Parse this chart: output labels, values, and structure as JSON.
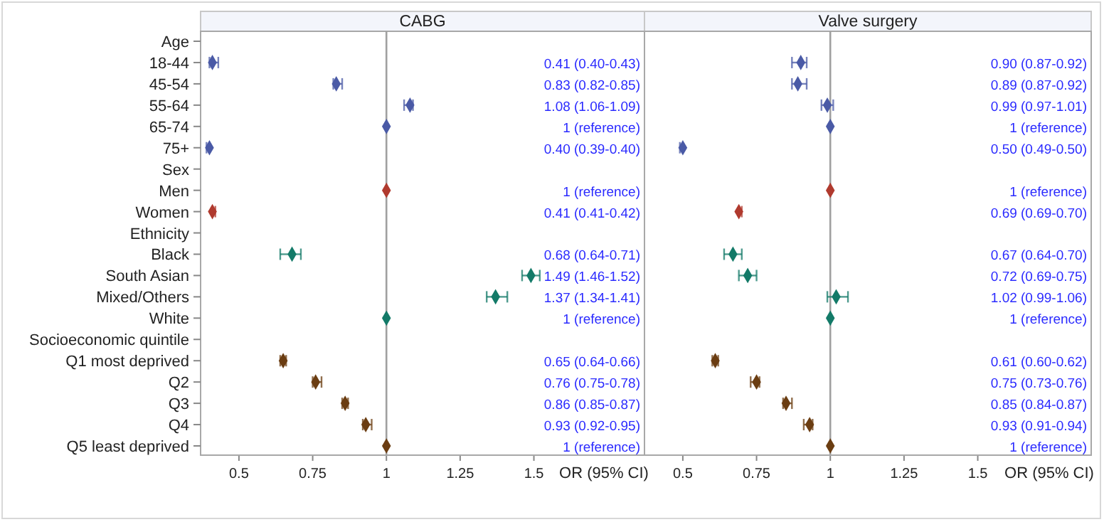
{
  "chart_data": [
    {
      "type": "scatter",
      "orientation": "horizontal",
      "title": "CABG",
      "xlabel": "OR (95% CI)",
      "marker": "diamond",
      "categories": [
        "Age",
        "18-44",
        "45-54",
        "55-64",
        "65-74",
        "75+",
        "Sex",
        "Men",
        "Women",
        "Ethnicity",
        "Black",
        "South Asian",
        "Mixed/Others",
        "White",
        "Socioeconomic quintile",
        "Q1 most deprived",
        "Q2",
        "Q3",
        "Q4",
        "Q5 least deprived"
      ],
      "values": [
        null,
        0.41,
        0.83,
        1.08,
        1,
        0.4,
        null,
        1,
        0.41,
        null,
        0.68,
        1.49,
        1.37,
        1,
        null,
        0.65,
        0.76,
        0.86,
        0.93,
        1
      ],
      "errors": [
        null,
        [
          0.4,
          0.43
        ],
        [
          0.82,
          0.85
        ],
        [
          1.06,
          1.09
        ],
        null,
        [
          0.39,
          0.4
        ],
        null,
        null,
        [
          0.41,
          0.42
        ],
        null,
        [
          0.64,
          0.71
        ],
        [
          1.46,
          1.52
        ],
        [
          1.34,
          1.41
        ],
        null,
        null,
        [
          0.64,
          0.66
        ],
        [
          0.75,
          0.78
        ],
        [
          0.85,
          0.87
        ],
        [
          0.92,
          0.95
        ],
        null
      ],
      "value_labels": [
        null,
        "0.41 (0.40-0.43)",
        "0.83 (0.82-0.85)",
        "1.08 (1.06-1.09)",
        "1 (reference)",
        "0.40 (0.39-0.40)",
        null,
        "1 (reference)",
        "0.41 (0.41-0.42)",
        null,
        "0.68 (0.64-0.71)",
        "1.49 (1.46-1.52)",
        "1.37 (1.34-1.41)",
        "1 (reference)",
        null,
        "0.65 (0.64-0.66)",
        "0.76 (0.75-0.78)",
        "0.86 (0.85-0.87)",
        "0.93 (0.92-0.95)",
        "1 (reference)"
      ],
      "colors": [
        null,
        "#4a5aa6",
        "#4a5aa6",
        "#4a5aa6",
        "#4a5aa6",
        "#4a5aa6",
        null,
        "#b03a2e",
        "#b03a2e",
        null,
        "#137a68",
        "#137a68",
        "#137a68",
        "#137a68",
        null,
        "#6b3d12",
        "#6b3d12",
        "#6b3d12",
        "#6b3d12",
        "#6b3d12"
      ],
      "xlim": [
        0.37,
        1.6
      ],
      "xticks": [
        0.5,
        0.75,
        1,
        1.25,
        1.5
      ],
      "ref_lines": [
        {
          "axis": "x",
          "value": 1,
          "color": "#a0a0a0"
        }
      ]
    },
    {
      "type": "scatter",
      "orientation": "horizontal",
      "title": "Valve surgery",
      "xlabel": "OR (95% CI)",
      "marker": "diamond",
      "tick_labels": "x",
      "values": [
        null,
        0.9,
        0.89,
        0.99,
        1,
        0.5,
        null,
        1,
        0.69,
        null,
        0.67,
        0.72,
        1.02,
        1,
        null,
        0.61,
        0.75,
        0.85,
        0.93,
        1
      ],
      "errors": [
        null,
        [
          0.87,
          0.92
        ],
        [
          0.87,
          0.92
        ],
        [
          0.97,
          1.01
        ],
        null,
        [
          0.49,
          0.5
        ],
        null,
        null,
        [
          0.69,
          0.7
        ],
        null,
        [
          0.64,
          0.7
        ],
        [
          0.69,
          0.75
        ],
        [
          0.99,
          1.06
        ],
        null,
        null,
        [
          0.6,
          0.62
        ],
        [
          0.73,
          0.76
        ],
        [
          0.84,
          0.87
        ],
        [
          0.91,
          0.94
        ],
        null
      ],
      "value_labels": [
        null,
        "0.90 (0.87-0.92)",
        "0.89 (0.87-0.92)",
        "0.99 (0.97-1.01)",
        "1 (reference)",
        "0.50 (0.49-0.50)",
        null,
        "1 (reference)",
        "0.69 (0.69-0.70)",
        null,
        "0.67 (0.64-0.70)",
        "0.72 (0.69-0.75)",
        "1.02 (0.99-1.06)",
        "1 (reference)",
        null,
        "0.61 (0.60-0.62)",
        "0.75 (0.73-0.76)",
        "0.85 (0.84-0.87)",
        "0.93 (0.91-0.94)",
        "1 (reference)"
      ],
      "colors": [
        null,
        "#4a5aa6",
        "#4a5aa6",
        "#4a5aa6",
        "#4a5aa6",
        "#4a5aa6",
        null,
        "#b03a2e",
        "#b03a2e",
        null,
        "#137a68",
        "#137a68",
        "#137a68",
        "#137a68",
        null,
        "#6b3d12",
        "#6b3d12",
        "#6b3d12",
        "#6b3d12",
        "#6b3d12"
      ],
      "xlim": [
        0.37,
        1.6
      ],
      "xticks": [
        0.5,
        0.75,
        1,
        1.25,
        1.5
      ],
      "ref_lines": [
        {
          "axis": "x",
          "value": 1,
          "color": "#a0a0a0"
        }
      ]
    }
  ]
}
